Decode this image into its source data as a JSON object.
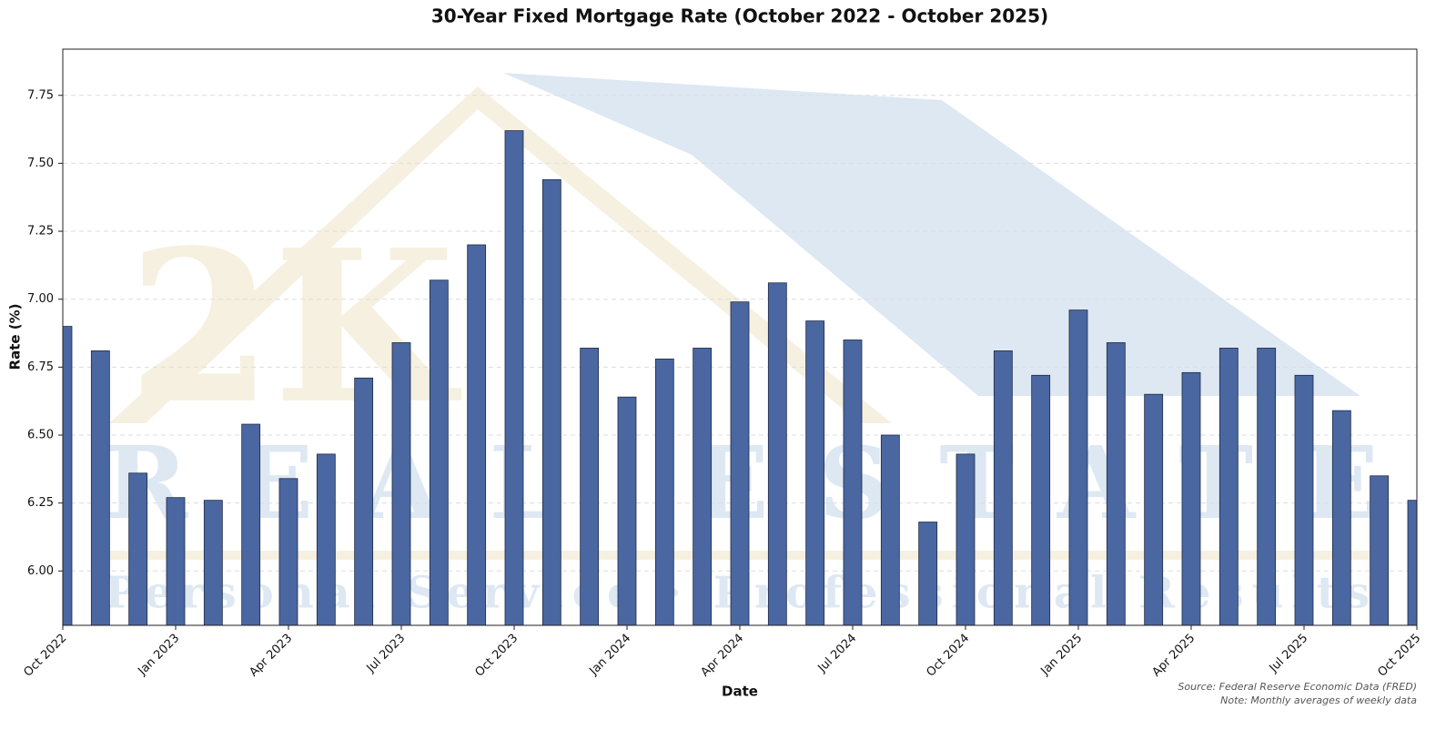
{
  "chart_data": {
    "type": "bar",
    "title": "30-Year Fixed Mortgage Rate (October 2022 - October 2025)",
    "x_label": "Date",
    "y_label": "Rate (%)",
    "source": "Source: Federal Reserve Economic Data (FRED)",
    "note": "Note: Monthly averages of weekly data",
    "watermark": [
      "2K",
      "REAL ESTATE",
      "Personal Service · Professional Results"
    ],
    "categories": [
      "Oct 2022",
      null,
      null,
      "Jan 2023",
      null,
      null,
      "Apr 2023",
      null,
      null,
      "Jul 2023",
      null,
      null,
      "Oct 2023",
      null,
      null,
      "Jan 2024",
      null,
      null,
      "Apr 2024",
      null,
      null,
      "Jul 2024",
      null,
      null,
      "Oct 2024",
      null,
      null,
      "Jan 2025",
      null,
      null,
      "Apr 2025",
      null,
      null,
      "Jul 2025",
      null,
      null,
      "Oct 2025"
    ],
    "values": [
      6.9,
      6.81,
      6.36,
      6.27,
      6.26,
      6.54,
      6.34,
      6.43,
      6.71,
      6.84,
      7.07,
      7.2,
      7.62,
      7.44,
      6.82,
      6.64,
      6.78,
      6.82,
      6.99,
      7.06,
      6.92,
      6.85,
      6.5,
      6.18,
      6.43,
      6.81,
      6.72,
      6.96,
      6.84,
      6.65,
      6.73,
      6.82,
      6.82,
      6.72,
      6.59,
      6.35,
      6.26
    ],
    "color": "#4a67a1",
    "ylim": [
      5.8,
      7.92
    ],
    "yticks": [
      {
        "value": 6.0,
        "label": "6.00"
      },
      {
        "value": 6.25,
        "label": "6.25"
      },
      {
        "value": 6.5,
        "label": "6.50"
      },
      {
        "value": 6.75,
        "label": "6.75"
      },
      {
        "value": 7.0,
        "label": "7.00"
      },
      {
        "value": 7.25,
        "label": "7.25"
      },
      {
        "value": 7.5,
        "label": "7.50"
      },
      {
        "value": 7.75,
        "label": "7.75"
      }
    ],
    "grid": true
  }
}
